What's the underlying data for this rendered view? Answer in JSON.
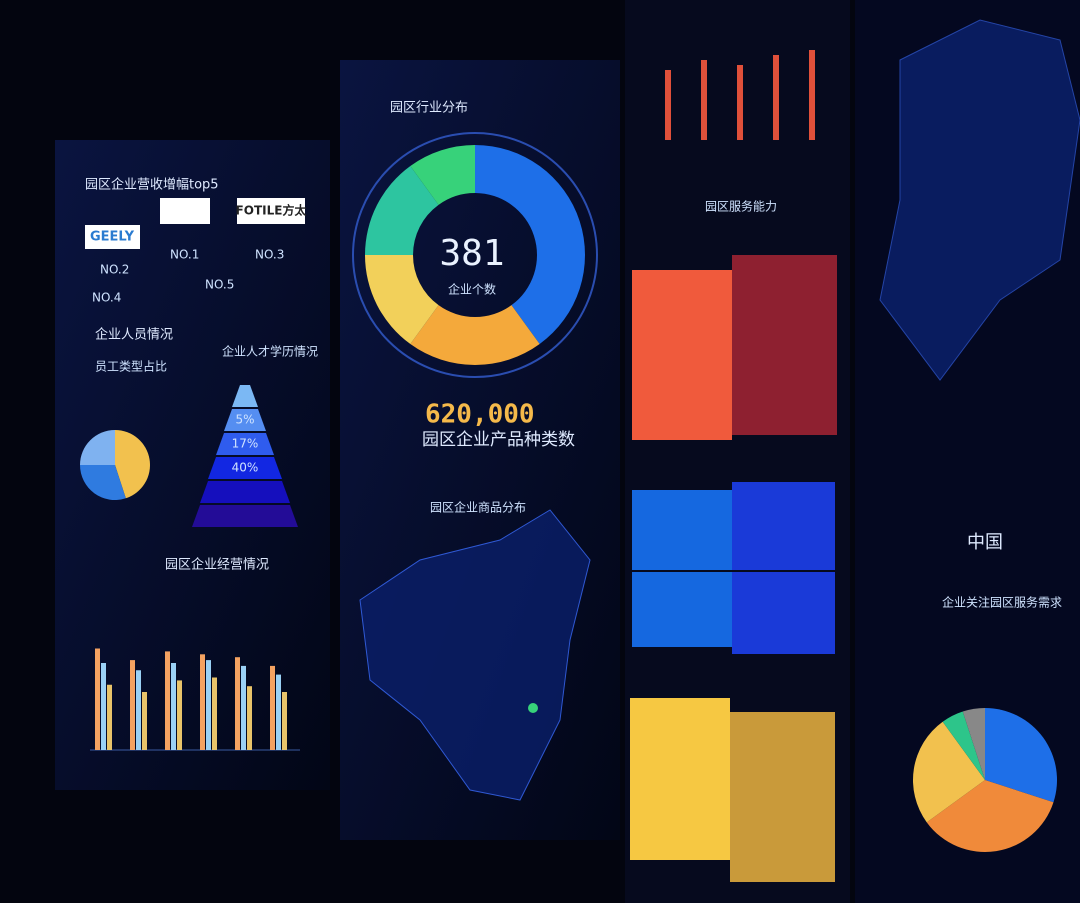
{
  "revenue_top5": {
    "title": "园区企业营收增幅top5",
    "brands": [
      "GEELY",
      "FOTILE方太"
    ],
    "ranks": [
      "NO.1",
      "NO.2",
      "NO.3",
      "NO.4",
      "NO.5"
    ]
  },
  "staff": {
    "title": "企业人员情况",
    "left_title": "员工类型占比",
    "right_title": "企业人才学历情况",
    "pie": {
      "values": [
        45,
        30,
        25
      ],
      "colors": [
        "#f2c14e",
        "#2f7be0",
        "#7fb2f0"
      ]
    },
    "pyramid_labels": [
      "5%",
      "17%",
      "40%"
    ]
  },
  "operations": {
    "title": "园区企业经营情况",
    "ylim": [
      0,
      100
    ],
    "series": [
      {
        "color": "#f4a261",
        "values": [
          70,
          62,
          68,
          66,
          64,
          58
        ]
      },
      {
        "color": "#9ad1f5",
        "values": [
          60,
          55,
          60,
          62,
          58,
          52
        ]
      },
      {
        "color": "#e9c46a",
        "values": [
          45,
          40,
          48,
          50,
          44,
          40
        ]
      }
    ]
  },
  "industry": {
    "title": "园区行业分布",
    "count": "381",
    "count_label": "企业个数",
    "segments": {
      "values": [
        40,
        20,
        15,
        15,
        10
      ],
      "colors": [
        "#1e6fe8",
        "#f4a93b",
        "#f2d05a",
        "#2dc5a0",
        "#37d27a"
      ]
    }
  },
  "products": {
    "value": "620,000",
    "label": "园区企业产品种类数"
  },
  "map_title": "园区企业商品分布",
  "service_capacity": {
    "title": "园区服务能力",
    "bars": {
      "values": [
        70,
        80,
        75,
        85,
        90
      ],
      "ylim": [
        0,
        100
      ]
    }
  },
  "china_label": "中国",
  "service_demand": {
    "title": "企业关注园区服务需求",
    "pie": {
      "values": [
        30,
        35,
        25,
        5,
        5
      ],
      "colors": [
        "#1e6fe8",
        "#f08a3a",
        "#f2c14e",
        "#2dc58a",
        "#888888"
      ]
    }
  }
}
